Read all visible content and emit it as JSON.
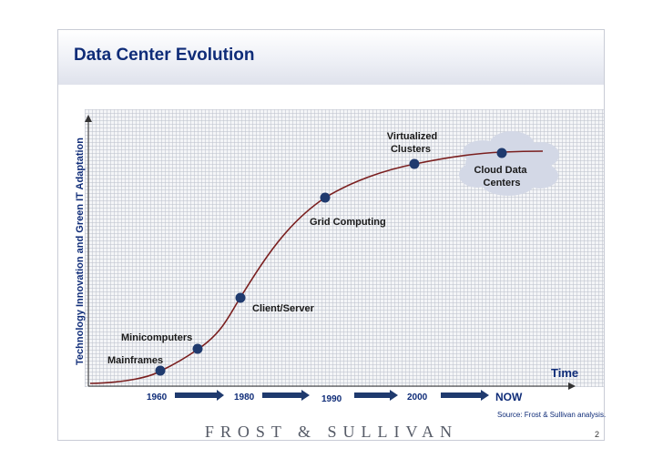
{
  "slide": {
    "title": "Data Center Evolution",
    "source": "Source: Frost & Sullivan analysis.",
    "brand": "FROST & SULLIVAN",
    "page_number": "2"
  },
  "diagram": {
    "y_axis_label": "Technology Innovation and Green IT Adaptation",
    "x_axis_label": "Time",
    "timeline": [
      "1960",
      "1980",
      "1990",
      "2000",
      "NOW"
    ],
    "stages": [
      "Mainframes",
      "Minicomputers",
      "Client/Server",
      "Grid Computing",
      "Virtualized Clusters",
      "Cloud Data Centers"
    ]
  },
  "colors": {
    "title": "#0f2c78",
    "curve": "#7a1f1f",
    "dot": "#1f3a6e",
    "arrow": "#1f3a6e",
    "cloud": "#d3d8e6"
  }
}
